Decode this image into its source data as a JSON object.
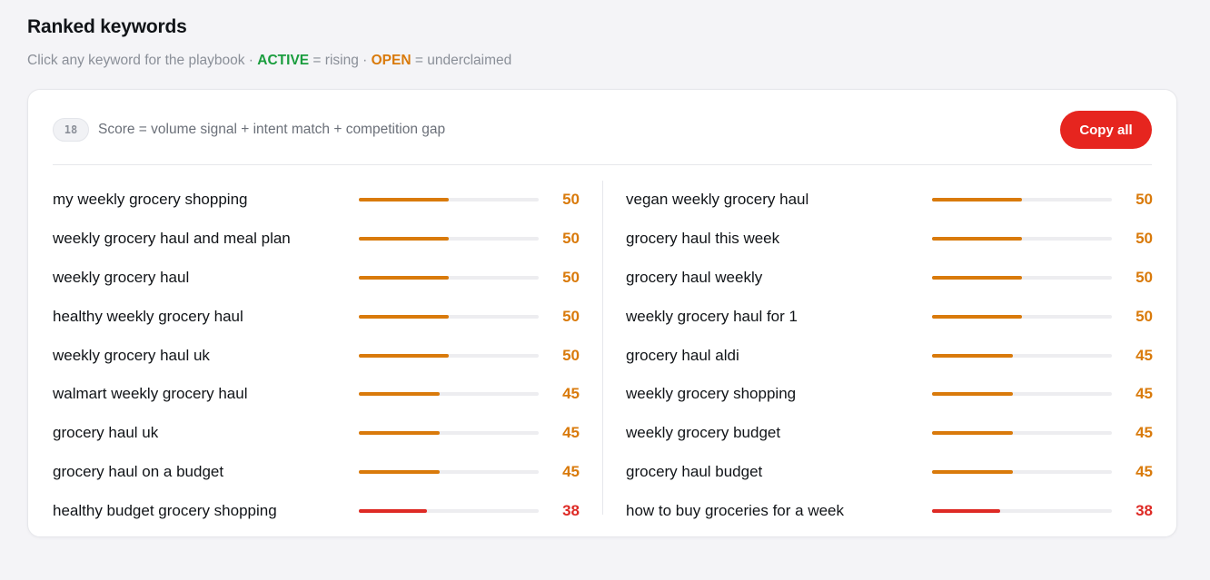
{
  "header": {
    "title": "Ranked keywords",
    "subtitle_prefix": "Click any keyword for the playbook · ",
    "active_label": "ACTIVE",
    "active_suffix": " = rising · ",
    "open_label": "OPEN",
    "open_suffix": " = underclaimed"
  },
  "card": {
    "count": "18",
    "formula": "Score = volume signal + intent match + competition gap",
    "copy_label": "Copy all"
  },
  "colors": {
    "orange": "#d97a0b",
    "red": "#de2a25",
    "active_green": "#1a9d3e",
    "copy_button": "#e6251f"
  },
  "keywords_left": [
    {
      "keyword": "my weekly grocery shopping",
      "score": "50",
      "level": "orange"
    },
    {
      "keyword": "weekly grocery haul and meal plan",
      "score": "50",
      "level": "orange"
    },
    {
      "keyword": "weekly grocery haul",
      "score": "50",
      "level": "orange"
    },
    {
      "keyword": "healthy weekly grocery haul",
      "score": "50",
      "level": "orange"
    },
    {
      "keyword": "weekly grocery haul uk",
      "score": "50",
      "level": "orange"
    },
    {
      "keyword": "walmart weekly grocery haul",
      "score": "45",
      "level": "orange"
    },
    {
      "keyword": "grocery haul uk",
      "score": "45",
      "level": "orange"
    },
    {
      "keyword": "grocery haul on a budget",
      "score": "45",
      "level": "orange"
    },
    {
      "keyword": "healthy budget grocery shopping",
      "score": "38",
      "level": "red"
    }
  ],
  "keywords_right": [
    {
      "keyword": "vegan weekly grocery haul",
      "score": "50",
      "level": "orange"
    },
    {
      "keyword": "grocery haul this week",
      "score": "50",
      "level": "orange"
    },
    {
      "keyword": "grocery haul weekly",
      "score": "50",
      "level": "orange"
    },
    {
      "keyword": "weekly grocery haul for 1",
      "score": "50",
      "level": "orange"
    },
    {
      "keyword": "grocery haul aldi",
      "score": "45",
      "level": "orange"
    },
    {
      "keyword": "weekly grocery shopping",
      "score": "45",
      "level": "orange"
    },
    {
      "keyword": "weekly grocery budget",
      "score": "45",
      "level": "orange"
    },
    {
      "keyword": "grocery haul budget",
      "score": "45",
      "level": "orange"
    },
    {
      "keyword": "how to buy groceries for a week",
      "score": "38",
      "level": "red"
    }
  ]
}
